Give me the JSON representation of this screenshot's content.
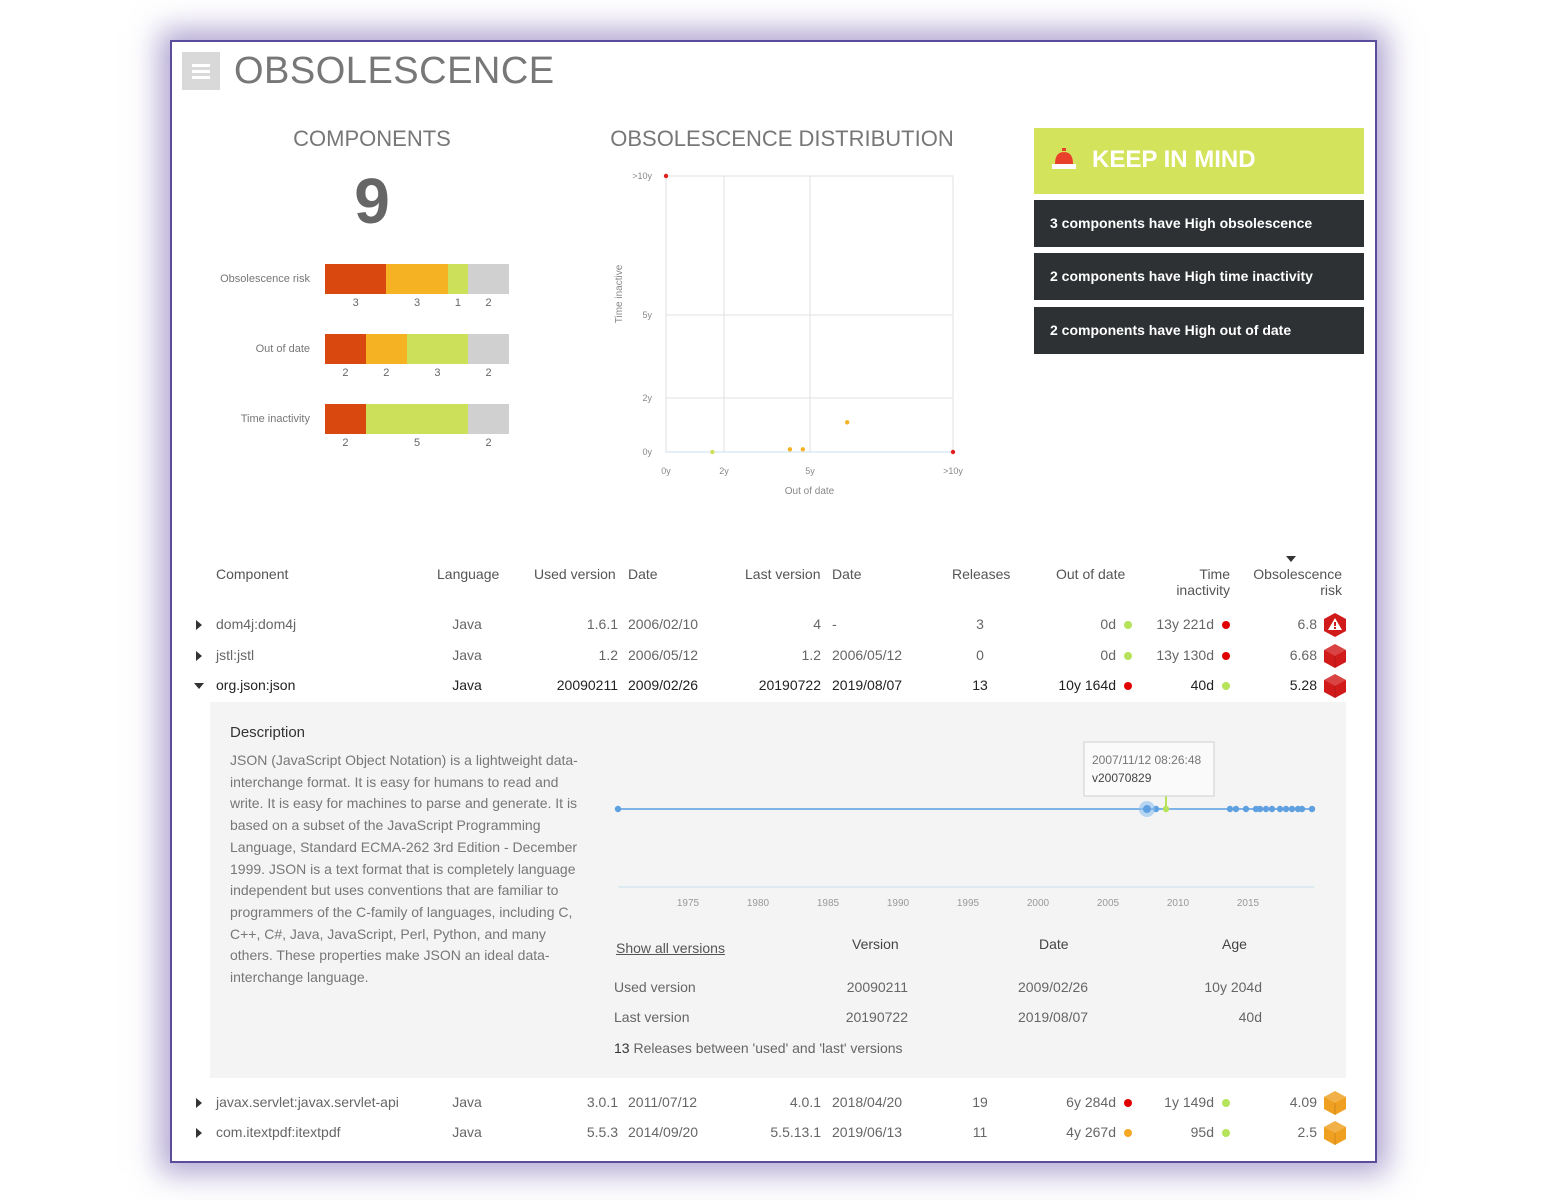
{
  "header": {
    "title": "OBSOLESCENCE",
    "menu_icon": "hamburger-icon"
  },
  "components": {
    "title": "COMPONENTS",
    "count": "9",
    "bars": [
      {
        "label": "Obsolescence risk",
        "segments": [
          {
            "value": 3,
            "color": "#d9480f"
          },
          {
            "value": 3,
            "color": "#f5b324"
          },
          {
            "value": 1,
            "color": "#cde05a"
          },
          {
            "value": 2,
            "color": "#d0d0d0"
          }
        ]
      },
      {
        "label": "Out of date",
        "segments": [
          {
            "value": 2,
            "color": "#d9480f"
          },
          {
            "value": 2,
            "color": "#f5b324"
          },
          {
            "value": 3,
            "color": "#cde05a"
          },
          {
            "value": 2,
            "color": "#d0d0d0"
          }
        ]
      },
      {
        "label": "Time inactivity",
        "segments": [
          {
            "value": 2,
            "color": "#d9480f"
          },
          {
            "value": 5,
            "color": "#cde05a"
          },
          {
            "value": 2,
            "color": "#d0d0d0"
          }
        ]
      }
    ]
  },
  "distribution": {
    "title": "OBSOLESCENCE DISTRIBUTION",
    "chart_data": {
      "type": "scatter",
      "title": "OBSOLESCENCE DISTRIBUTION",
      "xlabel": "Out of date",
      "ylabel": "Time inactive",
      "x_ticks": [
        "0y",
        "2y",
        "5y",
        ">10y"
      ],
      "y_ticks": [
        "0y",
        "2y",
        "5y",
        ">10y"
      ],
      "points": [
        {
          "x": 0,
          "y": 10,
          "color": "#e02020"
        },
        {
          "x": 10,
          "y": 0,
          "color": "#e02020"
        },
        {
          "x": 6.3,
          "y": 1.1,
          "color": "#f5b324"
        },
        {
          "x": 4.3,
          "y": 0.1,
          "color": "#f5b324"
        },
        {
          "x": 4.75,
          "y": 0.1,
          "color": "#f5b324"
        },
        {
          "x": 1.6,
          "y": 0.0,
          "color": "#cde05a"
        }
      ],
      "grid": true
    }
  },
  "keep_in_mind": {
    "title": "KEEP IN MIND",
    "icon": "siren-icon",
    "items": [
      "3 components have High obsolescence",
      "2 components have High time inactivity",
      "2 components have High out of date"
    ]
  },
  "table": {
    "headers": {
      "component": "Component",
      "language": "Language",
      "used_version": "Used version",
      "date": "Date",
      "last_version": "Last version",
      "last_date": "Date",
      "releases": "Releases",
      "out_of_date": "Out of date",
      "time_inactivity_1": "Time",
      "time_inactivity_2": "inactivity",
      "risk_1": "Obsolescence",
      "risk_2": "risk"
    },
    "rows": [
      {
        "component": "dom4j:dom4j",
        "language": "Java",
        "used_version": "1.6.1",
        "date": "2006/02/10",
        "last_version": "4",
        "last_date": "-",
        "releases": "3",
        "out_of_date": "0d",
        "ood_color": "#b5e35a",
        "time_inactivity": "13y 221d",
        "ti_color": "#e00000",
        "risk": "6.8",
        "risk_icon": "alert-hexagon-icon",
        "risk_color": "#d11a1a"
      },
      {
        "component": "jstl:jstl",
        "language": "Java",
        "used_version": "1.2",
        "date": "2006/05/12",
        "last_version": "1.2",
        "last_date": "2006/05/12",
        "releases": "0",
        "out_of_date": "0d",
        "ood_color": "#b5e35a",
        "time_inactivity": "13y 130d",
        "ti_color": "#e00000",
        "risk": "6.68",
        "risk_icon": "red-cube-icon",
        "risk_color": "#d11a1a"
      },
      {
        "component": "org.json:json",
        "language": "Java",
        "used_version": "20090211",
        "date": "2009/02/26",
        "last_version": "20190722",
        "last_date": "2019/08/07",
        "releases": "13",
        "out_of_date": "10y 164d",
        "ood_color": "#e00000",
        "time_inactivity": "40d",
        "ti_color": "#b5e35a",
        "risk": "5.28",
        "risk_icon": "red-cube-icon",
        "risk_color": "#d11a1a"
      },
      {
        "component": "javax.servlet:javax.servlet-api",
        "language": "Java",
        "used_version": "3.0.1",
        "date": "2011/07/12",
        "last_version": "4.0.1",
        "last_date": "2018/04/20",
        "releases": "19",
        "out_of_date": "6y 284d",
        "ood_color": "#e00000",
        "time_inactivity": "1y 149d",
        "ti_color": "#b5e35a",
        "risk": "4.09",
        "risk_icon": "orange-cube-icon",
        "risk_color": "#f0a020"
      },
      {
        "component": "com.itextpdf:itextpdf",
        "language": "Java",
        "used_version": "5.5.3",
        "date": "2014/09/20",
        "last_version": "5.5.13.1",
        "last_date": "2019/06/13",
        "releases": "11",
        "out_of_date": "4y 267d",
        "ood_color": "#f5a623",
        "time_inactivity": "95d",
        "ti_color": "#b5e35a",
        "risk": "2.5",
        "risk_icon": "orange-cube-icon",
        "risk_color": "#f0a020"
      }
    ]
  },
  "detail": {
    "description_title": "Description",
    "description": "JSON (JavaScript Object Notation) is a lightweight data-interchange format. It is easy for humans to read and write. It is easy for machines to parse and generate. It is based on a subset of the JavaScript Programming Language, Standard ECMA-262 3rd Edition - December 1999. JSON is a text format that is completely language independent but uses conventions that are familiar to programmers of the C-family of languages, including C, C++, C#, Java, JavaScript, Perl, Python, and many others. These properties make JSON an ideal data-interchange language.",
    "timeline": {
      "tooltip_date": "2007/11/12 08:26:48",
      "tooltip_version": "v20070829",
      "axis_ticks": [
        "1975",
        "1980",
        "1985",
        "1990",
        "1995",
        "2000",
        "2005",
        "2010",
        "2015"
      ]
    },
    "show_all": "Show all versions",
    "version_header": "Version",
    "date_header": "Date",
    "age_header": "Age",
    "used": {
      "label": "Used version",
      "version": "20090211",
      "date": "2009/02/26",
      "age": "10y 204d"
    },
    "last": {
      "label": "Last version",
      "version": "20190722",
      "date": "2019/08/07",
      "age": "40d"
    },
    "releases_count": "13",
    "releases_text": "Releases between 'used' and 'last' versions"
  }
}
